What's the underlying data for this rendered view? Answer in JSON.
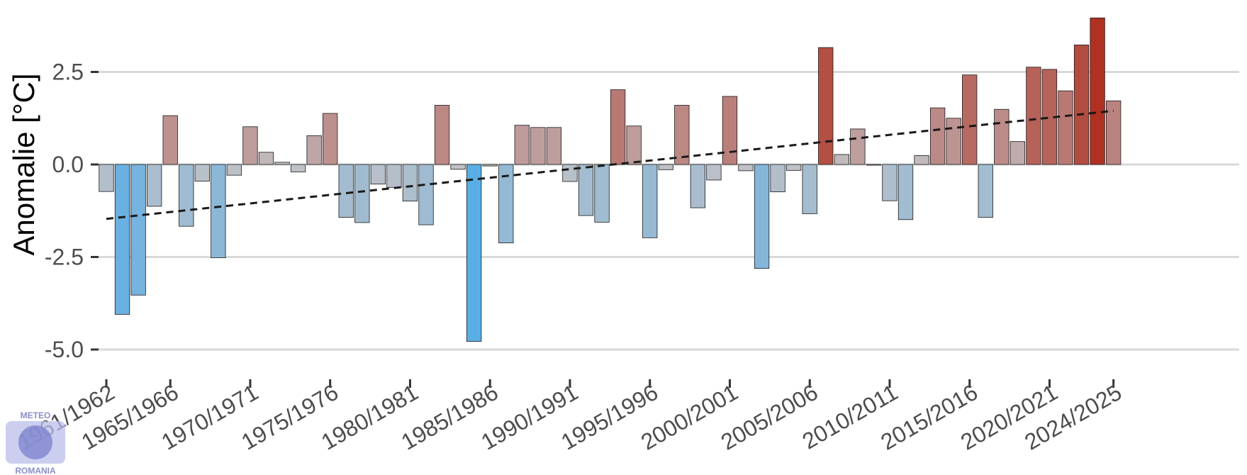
{
  "logo": {
    "line1": "METEO",
    "line2": "ROMANIA"
  },
  "chart_data": {
    "type": "bar",
    "ylabel": "Anomalie [°C]",
    "xlabel": "",
    "ylim": [
      -5.0,
      4.0
    ],
    "yticks": [
      "2.5",
      "0.0",
      "-2.5",
      "-5.0"
    ],
    "ytick_values": [
      2.5,
      0.0,
      -2.5,
      -5.0
    ],
    "grid": "horizontal",
    "xtick_labels": [
      "1961/1962",
      "1965/1966",
      "1970/1971",
      "1975/1976",
      "1980/1981",
      "1985/1986",
      "1990/1991",
      "1995/1996",
      "2000/2001",
      "2005/2006",
      "2010/2011",
      "2015/2016",
      "2020/2021",
      "2024/2025"
    ],
    "xtick_indices": [
      0,
      4,
      9,
      14,
      19,
      24,
      29,
      34,
      39,
      44,
      49,
      54,
      59,
      63
    ],
    "categories": [
      "1961/1962",
      "1962/1963",
      "1963/1964",
      "1964/1965",
      "1965/1966",
      "1966/1967",
      "1967/1968",
      "1968/1969",
      "1969/1970",
      "1970/1971",
      "1971/1972",
      "1972/1973",
      "1973/1974",
      "1974/1975",
      "1975/1976",
      "1976/1977",
      "1977/1978",
      "1978/1979",
      "1979/1980",
      "1980/1981",
      "1981/1982",
      "1982/1983",
      "1983/1984",
      "1984/1985",
      "1985/1986",
      "1986/1987",
      "1987/1988",
      "1988/1989",
      "1989/1990",
      "1990/1991",
      "1991/1992",
      "1992/1993",
      "1993/1994",
      "1994/1995",
      "1995/1996",
      "1996/1997",
      "1997/1998",
      "1998/1999",
      "1999/2000",
      "2000/2001",
      "2001/2002",
      "2002/2003",
      "2003/2004",
      "2004/2005",
      "2005/2006",
      "2006/2007",
      "2007/2008",
      "2008/2009",
      "2009/2010",
      "2010/2011",
      "2011/2012",
      "2012/2013",
      "2013/2014",
      "2014/2015",
      "2015/2016",
      "2016/2017",
      "2017/2018",
      "2018/2019",
      "2019/2020",
      "2020/2021",
      "2021/2022",
      "2022/2023",
      "2023/2024",
      "2024/2025"
    ],
    "values": [
      -0.73,
      -4.05,
      -3.53,
      -1.13,
      1.32,
      -1.67,
      -0.45,
      -2.52,
      -0.29,
      1.02,
      0.33,
      0.06,
      -0.2,
      0.78,
      1.38,
      -1.43,
      -1.57,
      -0.53,
      -0.62,
      -0.99,
      -1.63,
      1.6,
      -0.13,
      -4.78,
      -0.04,
      -2.12,
      1.06,
      1.0,
      1.0,
      -0.46,
      -1.38,
      -1.56,
      2.02,
      1.04,
      -1.98,
      -0.14,
      1.6,
      -1.17,
      -0.42,
      1.84,
      -0.17,
      -2.81,
      -0.74,
      -0.16,
      -1.33,
      3.16,
      0.27,
      0.96,
      0.0,
      -0.98,
      -1.49,
      0.24,
      1.53,
      1.25,
      2.42,
      -1.43,
      1.49,
      0.62,
      2.63,
      2.57,
      1.99,
      3.23,
      3.96,
      1.72
    ],
    "trend": {
      "start": -1.47,
      "end": 1.45,
      "style": "dashed"
    },
    "color_scale": {
      "cold": "#5aaee6",
      "neutral": "#c2c2c6",
      "warm": "#b03020"
    }
  }
}
